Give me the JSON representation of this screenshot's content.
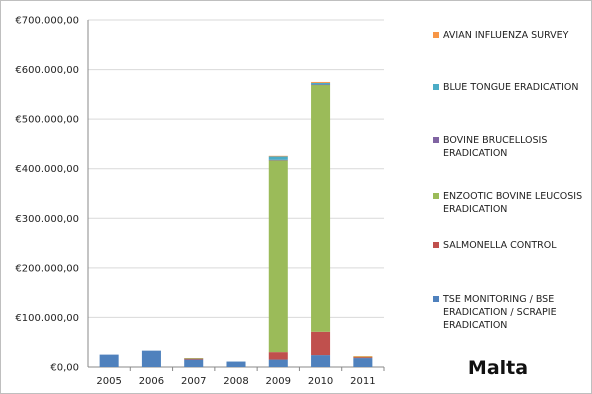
{
  "chart_data": {
    "type": "bar",
    "stacked": true,
    "title": "Malta",
    "categories": [
      "2005",
      "2006",
      "2007",
      "2008",
      "2009",
      "2010",
      "2011"
    ],
    "y_ticks": [
      "€0,00",
      "€100.000,00",
      "€200.000,00",
      "€300.000,00",
      "€400.000,00",
      "€500.000,00",
      "€600.000,00",
      "€700.000,00"
    ],
    "ylim": [
      0,
      700000
    ],
    "grid": true,
    "legend_position": "right",
    "series": [
      {
        "name": "TSE MONITORING / BSE ERADICATION / SCRAPIE ERADICATION",
        "color": "#4f81bd",
        "values": [
          25000,
          33000,
          15000,
          11000,
          15000,
          24000,
          18000
        ]
      },
      {
        "name": "SALMONELLA CONTROL",
        "color": "#c0504d",
        "values": [
          0,
          0,
          2000,
          0,
          15000,
          47000,
          2000
        ]
      },
      {
        "name": "ENZOOTIC BOVINE LEUCOSIS ERADICATION",
        "color": "#9bbb59",
        "values": [
          0,
          0,
          1000,
          0,
          387000,
          498000,
          1000
        ]
      },
      {
        "name": "BOVINE BRUCELLOSIS ERADICATION",
        "color": "#8064a2",
        "values": [
          0,
          0,
          0,
          0,
          1000,
          1000,
          0
        ]
      },
      {
        "name": "BLUE TONGUE ERADICATION",
        "color": "#4bacc6",
        "values": [
          0,
          0,
          0,
          0,
          7000,
          3000,
          0
        ]
      },
      {
        "name": "AVIAN INFLUENZA SURVEY",
        "color": "#f79646",
        "values": [
          0,
          0,
          0,
          0,
          1000,
          2000,
          1000
        ]
      }
    ],
    "legend_lines": [
      [
        "AVIAN INFLUENZA SURVEY"
      ],
      [
        "BLUE TONGUE ERADICATION"
      ],
      [
        "BOVINE BRUCELLOSIS",
        "ERADICATION"
      ],
      [
        "ENZOOTIC BOVINE LEUCOSIS",
        "ERADICATION"
      ],
      [
        "SALMONELLA CONTROL"
      ],
      [
        "TSE MONITORING / BSE",
        "ERADICATION / SCRAPIE",
        "ERADICATION"
      ]
    ]
  }
}
